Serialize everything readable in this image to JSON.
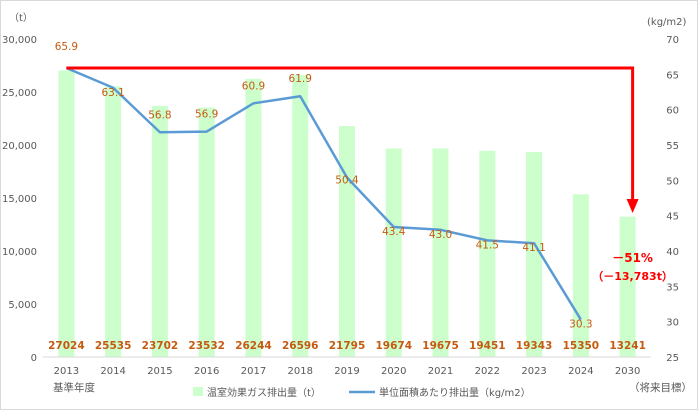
{
  "chart_data": {
    "type": "bar",
    "categories": [
      "2013",
      "2014",
      "2015",
      "2016",
      "2017",
      "2018",
      "2019",
      "2020",
      "2021",
      "2022",
      "2023",
      "2024",
      "2030"
    ],
    "series": [
      {
        "name": "温室効果ガス排出量（t）",
        "type": "bar",
        "axis": "left",
        "values": [
          27024,
          25535,
          23702,
          23532,
          26244,
          26596,
          21795,
          19674,
          19675,
          19451,
          19343,
          15350,
          13241
        ]
      },
      {
        "name": "単位面積あたり排出量（kg/m2）",
        "type": "line",
        "axis": "right",
        "values": [
          65.9,
          63.1,
          56.8,
          56.9,
          60.9,
          61.9,
          50.4,
          43.4,
          43.0,
          41.5,
          41.1,
          30.3,
          null
        ]
      }
    ],
    "ylabel_left": "（t）",
    "ylabel_right": "(kg/m2)",
    "ylim_left": [
      0,
      30000
    ],
    "ylim_right": [
      25,
      70
    ],
    "yticks_left": [
      "0",
      "5,000",
      "10,000",
      "15,000",
      "20,000",
      "25,000",
      "30,000"
    ],
    "yticks_right": [
      "25",
      "30",
      "35",
      "40",
      "45",
      "50",
      "55",
      "60",
      "65",
      "70"
    ],
    "legend": {
      "position": "bottom"
    },
    "grid": false,
    "notes": {
      "base_year": "基準年度",
      "target": "（将来目標）"
    },
    "annotation": {
      "percent": "－51%",
      "amount": "（－13,783t）"
    },
    "colors": {
      "bar": "#ccffcc",
      "line": "#5b9bd5",
      "labels": "#c55a11",
      "arrow": "#ff0000"
    }
  }
}
